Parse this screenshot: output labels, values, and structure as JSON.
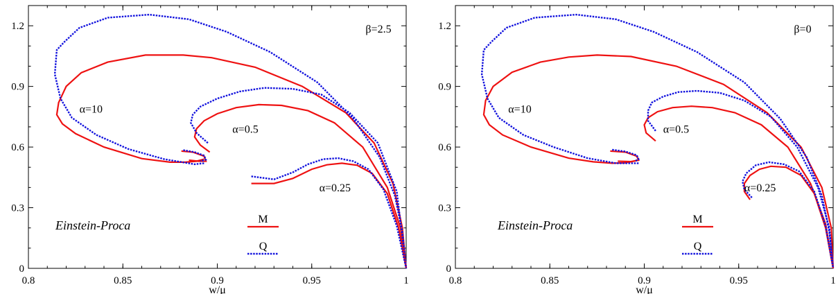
{
  "chart_data": [
    {
      "type": "line",
      "xlabel": "w/μ",
      "ylabel": "",
      "xlim": [
        0.8,
        1.0
      ],
      "ylim": [
        0,
        1.3
      ],
      "xticks": [
        "0.8",
        "0.85",
        "0.9",
        "0.95",
        "1"
      ],
      "yticks": [
        "0",
        "0.3",
        "0.6",
        "0.9",
        "1.2"
      ],
      "beta_label": "β=2.5",
      "model_label": "Einstein-Proca",
      "legend": [
        {
          "name": "M",
          "style": "solid",
          "color": "#ee1111"
        },
        {
          "name": "Q",
          "style": "dotted",
          "color": "#1111dd"
        }
      ],
      "annotations": [
        {
          "text": "α=10",
          "x": 0.827,
          "y": 0.77
        },
        {
          "text": "α=0.5",
          "x": 0.908,
          "y": 0.67
        },
        {
          "text": "α=0.25",
          "x": 0.954,
          "y": 0.38
        }
      ],
      "series": [
        {
          "name": "M",
          "alpha": "10",
          "x": [
            0.893,
            0.889,
            0.883,
            0.875,
            0.86,
            0.84,
            0.825,
            0.818,
            0.815,
            0.816,
            0.82,
            0.828,
            0.842,
            0.862,
            0.882,
            0.897,
            0.92,
            0.945,
            0.968,
            0.983,
            0.993,
            0.998,
            1.0
          ],
          "y": [
            0.54,
            0.53,
            0.525,
            0.525,
            0.543,
            0.6,
            0.666,
            0.715,
            0.76,
            0.82,
            0.9,
            0.968,
            1.02,
            1.055,
            1.055,
            1.042,
            0.995,
            0.9,
            0.77,
            0.62,
            0.42,
            0.2,
            0.0
          ]
        },
        {
          "name": "Q",
          "alpha": "10",
          "x": [
            0.893,
            0.888,
            0.872,
            0.853,
            0.836,
            0.823,
            0.817,
            0.814,
            0.815,
            0.819,
            0.827,
            0.842,
            0.864,
            0.885,
            0.905,
            0.928,
            0.953,
            0.972,
            0.986,
            0.994,
            0.998,
            1.0
          ],
          "y": [
            0.52,
            0.515,
            0.54,
            0.59,
            0.66,
            0.745,
            0.84,
            0.96,
            1.08,
            1.12,
            1.19,
            1.24,
            1.255,
            1.232,
            1.17,
            1.07,
            0.92,
            0.74,
            0.55,
            0.36,
            0.18,
            0.0
          ]
        },
        {
          "name": "M",
          "alpha": "0.5",
          "x": [
            0.896,
            0.891,
            0.888,
            0.889,
            0.893,
            0.9,
            0.91,
            0.922,
            0.934,
            0.948,
            0.962,
            0.977,
            0.99,
            0.997,
            1.0
          ],
          "y": [
            0.575,
            0.61,
            0.65,
            0.69,
            0.73,
            0.765,
            0.795,
            0.81,
            0.806,
            0.78,
            0.72,
            0.6,
            0.4,
            0.2,
            0.0
          ]
        },
        {
          "name": "Q",
          "alpha": "0.5",
          "x": [
            0.895,
            0.889,
            0.886,
            0.887,
            0.891,
            0.9,
            0.912,
            0.925,
            0.94,
            0.955,
            0.97,
            0.985,
            0.995,
            1.0
          ],
          "y": [
            0.62,
            0.67,
            0.72,
            0.76,
            0.8,
            0.84,
            0.875,
            0.893,
            0.888,
            0.86,
            0.77,
            0.62,
            0.38,
            0.0
          ]
        },
        {
          "name": "M",
          "alpha": "0.25",
          "x": [
            0.918,
            0.93,
            0.94,
            0.95,
            0.958,
            0.966,
            0.974,
            0.982,
            0.99,
            0.996,
            1.0
          ],
          "y": [
            0.42,
            0.42,
            0.445,
            0.49,
            0.512,
            0.52,
            0.51,
            0.47,
            0.37,
            0.2,
            0.0
          ]
        },
        {
          "name": "Q",
          "alpha": "0.25",
          "x": [
            0.918,
            0.93,
            0.94,
            0.948,
            0.956,
            0.964,
            0.972,
            0.98,
            0.988,
            0.995,
            1.0
          ],
          "y": [
            0.455,
            0.44,
            0.475,
            0.515,
            0.54,
            0.545,
            0.53,
            0.49,
            0.39,
            0.21,
            0.0
          ]
        },
        {
          "name": "M",
          "alpha": "small loop",
          "x": [
            0.881,
            0.887,
            0.893,
            0.894,
            0.89,
            0.885
          ],
          "y": [
            0.58,
            0.575,
            0.555,
            0.53,
            0.53,
            0.535
          ]
        },
        {
          "name": "Q",
          "alpha": "small loop",
          "x": [
            0.882,
            0.888,
            0.893,
            0.894,
            0.891
          ],
          "y": [
            0.585,
            0.575,
            0.558,
            0.538,
            0.53
          ]
        }
      ]
    },
    {
      "type": "line",
      "xlabel": "w/μ",
      "ylabel": "",
      "xlim": [
        0.8,
        1.0
      ],
      "ylim": [
        0,
        1.3
      ],
      "xticks": [
        "0.8",
        "0.85",
        "0.9",
        "0.95",
        "1"
      ],
      "yticks": [
        "0",
        "0.3",
        "0.6",
        "0.9",
        "1.2"
      ],
      "beta_label": "β=0",
      "model_label": "Einstein-Proca",
      "legend": [
        {
          "name": "M",
          "style": "solid",
          "color": "#ee1111"
        },
        {
          "name": "Q",
          "style": "dotted",
          "color": "#1111dd"
        }
      ],
      "annotations": [
        {
          "text": "α=10",
          "x": 0.828,
          "y": 0.77
        },
        {
          "text": "α=0.5",
          "x": 0.91,
          "y": 0.67
        },
        {
          "text": "α=0.25",
          "x": 0.953,
          "y": 0.38
        }
      ],
      "series": [
        {
          "name": "M",
          "alpha": "10",
          "x": [
            0.897,
            0.89,
            0.883,
            0.873,
            0.86,
            0.84,
            0.825,
            0.818,
            0.815,
            0.816,
            0.82,
            0.83,
            0.845,
            0.86,
            0.875,
            0.893,
            0.917,
            0.942,
            0.965,
            0.983,
            0.994,
            0.999,
            1.0
          ],
          "y": [
            0.535,
            0.522,
            0.52,
            0.527,
            0.545,
            0.6,
            0.66,
            0.71,
            0.76,
            0.83,
            0.9,
            0.97,
            1.02,
            1.045,
            1.055,
            1.048,
            1.0,
            0.91,
            0.77,
            0.6,
            0.4,
            0.2,
            0.0
          ]
        },
        {
          "name": "Q",
          "alpha": "10",
          "x": [
            0.897,
            0.885,
            0.87,
            0.852,
            0.836,
            0.823,
            0.817,
            0.814,
            0.815,
            0.819,
            0.827,
            0.842,
            0.864,
            0.885,
            0.905,
            0.928,
            0.953,
            0.972,
            0.986,
            0.994,
            0.998,
            1.0
          ],
          "y": [
            0.52,
            0.52,
            0.545,
            0.6,
            0.66,
            0.745,
            0.84,
            0.96,
            1.08,
            1.12,
            1.19,
            1.24,
            1.255,
            1.232,
            1.17,
            1.07,
            0.92,
            0.74,
            0.55,
            0.36,
            0.18,
            0.0
          ]
        },
        {
          "name": "M",
          "alpha": "0.5",
          "x": [
            0.906,
            0.901,
            0.9,
            0.902,
            0.907,
            0.915,
            0.925,
            0.936,
            0.948,
            0.962,
            0.976,
            0.988,
            0.996,
            1.0
          ],
          "y": [
            0.63,
            0.67,
            0.71,
            0.745,
            0.775,
            0.795,
            0.802,
            0.795,
            0.77,
            0.71,
            0.6,
            0.42,
            0.22,
            0.0
          ]
        },
        {
          "name": "Q",
          "alpha": "0.5",
          "x": [
            0.906,
            0.902,
            0.902,
            0.904,
            0.91,
            0.918,
            0.928,
            0.94,
            0.953,
            0.967,
            0.981,
            0.992,
            0.998,
            1.0
          ],
          "y": [
            0.68,
            0.73,
            0.78,
            0.82,
            0.85,
            0.872,
            0.878,
            0.868,
            0.83,
            0.75,
            0.6,
            0.4,
            0.2,
            0.0
          ]
        },
        {
          "name": "M",
          "alpha": "0.25",
          "x": [
            0.956,
            0.953,
            0.953,
            0.956,
            0.961,
            0.967,
            0.975,
            0.983,
            0.99,
            0.996,
            1.0
          ],
          "y": [
            0.34,
            0.38,
            0.42,
            0.46,
            0.49,
            0.505,
            0.5,
            0.46,
            0.37,
            0.2,
            0.0
          ]
        },
        {
          "name": "Q",
          "alpha": "0.25",
          "x": [
            0.957,
            0.953,
            0.952,
            0.954,
            0.959,
            0.966,
            0.974,
            0.982,
            0.99,
            0.996,
            1.0
          ],
          "y": [
            0.35,
            0.39,
            0.43,
            0.47,
            0.51,
            0.525,
            0.515,
            0.48,
            0.38,
            0.21,
            0.0
          ]
        },
        {
          "name": "M",
          "alpha": "small loop",
          "x": [
            0.882,
            0.89,
            0.896,
            0.897,
            0.893,
            0.886
          ],
          "y": [
            0.58,
            0.575,
            0.555,
            0.535,
            0.528,
            0.53
          ]
        },
        {
          "name": "Q",
          "alpha": "small loop",
          "x": [
            0.883,
            0.89,
            0.896,
            0.897,
            0.895
          ],
          "y": [
            0.587,
            0.578,
            0.56,
            0.54,
            0.53
          ]
        }
      ]
    }
  ]
}
